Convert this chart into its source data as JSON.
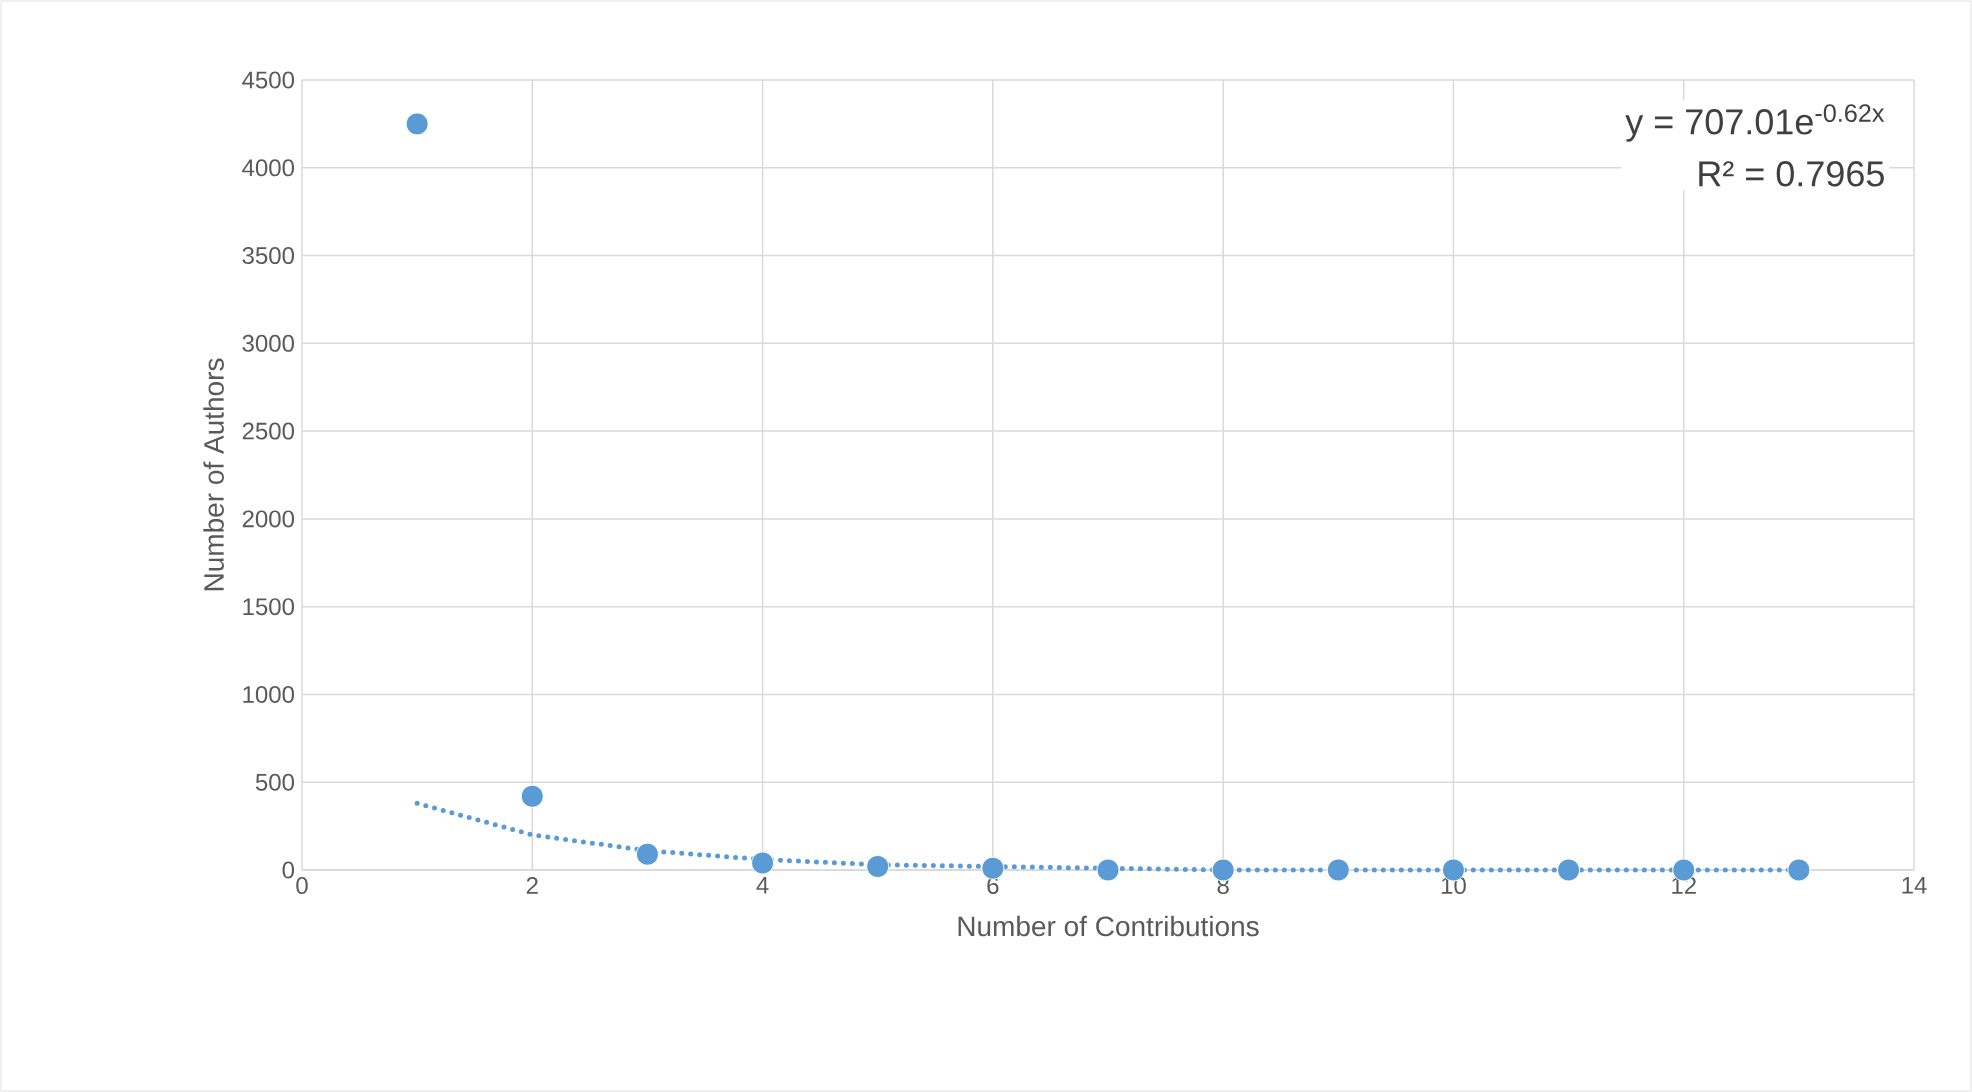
{
  "chart_data": {
    "type": "scatter",
    "xlabel": "Number of  Contributions",
    "ylabel": "Number of Authors",
    "xlim": [
      0,
      14
    ],
    "ylim": [
      0,
      4500
    ],
    "xticks": [
      0,
      2,
      4,
      6,
      8,
      10,
      12,
      14
    ],
    "yticks": [
      0,
      500,
      1000,
      1500,
      2000,
      2500,
      3000,
      3500,
      4000,
      4500
    ],
    "grid": true,
    "marker": "circle",
    "annotations": [
      "y = 707.01e$^{-0.62x}$",
      "R² = 0.7965"
    ],
    "series": [
      {
        "color": "#5b9bd5",
        "x": [
          1,
          2,
          3,
          4,
          5,
          6,
          7,
          8,
          9,
          10,
          11,
          12,
          13
        ],
        "values": [
          4250,
          420,
          90,
          40,
          20,
          10,
          0,
          0,
          0,
          0,
          0,
          0,
          0
        ]
      },
      {
        "type": "line",
        "line_style": "dotted",
        "marker": "none",
        "color": "#5b9bd5",
        "x": [
          1,
          2,
          3,
          4,
          5,
          6,
          7,
          8,
          9,
          10,
          11,
          12,
          13
        ],
        "values": [
          380,
          200,
          110,
          60,
          30,
          20,
          10,
          0,
          0,
          0,
          0,
          0,
          0
        ]
      }
    ]
  }
}
